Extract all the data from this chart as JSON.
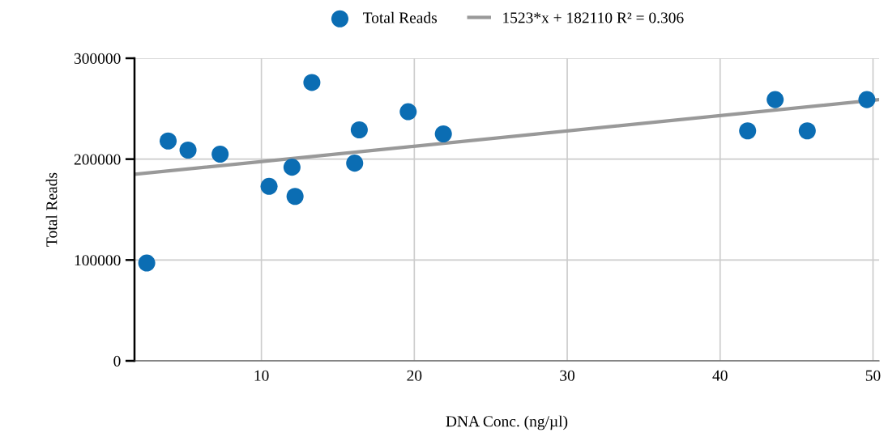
{
  "chart_data": {
    "type": "scatter",
    "xlabel": "DNA Conc. (ng/µl)",
    "ylabel": "Total Reads",
    "xlim": [
      1.7,
      50.4
    ],
    "ylim": [
      0,
      300000
    ],
    "xticks": [
      10,
      20,
      30,
      40,
      50
    ],
    "yticks": [
      0,
      100000,
      200000,
      300000
    ],
    "grid": true,
    "legend": "top",
    "series": [
      {
        "name": "Total Reads",
        "color": "#0b6db3",
        "marker": "circle",
        "x": [
          2.5,
          3.9,
          5.2,
          7.3,
          10.5,
          12.0,
          12.2,
          13.3,
          16.1,
          16.4,
          19.6,
          21.9,
          41.8,
          43.6,
          45.7,
          49.6
        ],
        "values": [
          97000,
          218000,
          209000,
          205000,
          173000,
          192000,
          163000,
          276000,
          196000,
          229000,
          247000,
          225000,
          228000,
          259000,
          228000,
          259000
        ]
      },
      {
        "name": "1523*x + 182110 R² = 0.306",
        "type": "line",
        "color": "#999999",
        "x": [
          1.7,
          50.4
        ],
        "values": [
          185000,
          259000
        ]
      }
    ]
  }
}
